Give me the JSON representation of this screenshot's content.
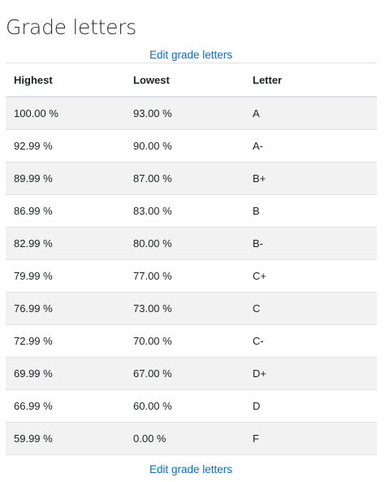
{
  "page": {
    "title": "Grade letters",
    "edit_link_label": "Edit grade letters"
  },
  "table": {
    "headers": {
      "highest": "Highest",
      "lowest": "Lowest",
      "letter": "Letter"
    },
    "rows": [
      {
        "highest": "100.00 %",
        "lowest": "93.00 %",
        "letter": "A"
      },
      {
        "highest": "92.99 %",
        "lowest": "90.00 %",
        "letter": "A-"
      },
      {
        "highest": "89.99 %",
        "lowest": "87.00 %",
        "letter": "B+"
      },
      {
        "highest": "86.99 %",
        "lowest": "83.00 %",
        "letter": "B"
      },
      {
        "highest": "82.99 %",
        "lowest": "80.00 %",
        "letter": "B-"
      },
      {
        "highest": "79.99 %",
        "lowest": "77.00 %",
        "letter": "C+"
      },
      {
        "highest": "76.99 %",
        "lowest": "73.00 %",
        "letter": "C"
      },
      {
        "highest": "72.99 %",
        "lowest": "70.00 %",
        "letter": "C-"
      },
      {
        "highest": "69.99 %",
        "lowest": "67.00 %",
        "letter": "D+"
      },
      {
        "highest": "66.99 %",
        "lowest": "60.00 %",
        "letter": "D"
      },
      {
        "highest": "59.99 %",
        "lowest": "0.00 %",
        "letter": "F"
      }
    ]
  },
  "colors": {
    "link": "#0f6cbf",
    "stripe": "#f2f2f2",
    "border": "#dee2e6",
    "text": "#1d2125"
  }
}
